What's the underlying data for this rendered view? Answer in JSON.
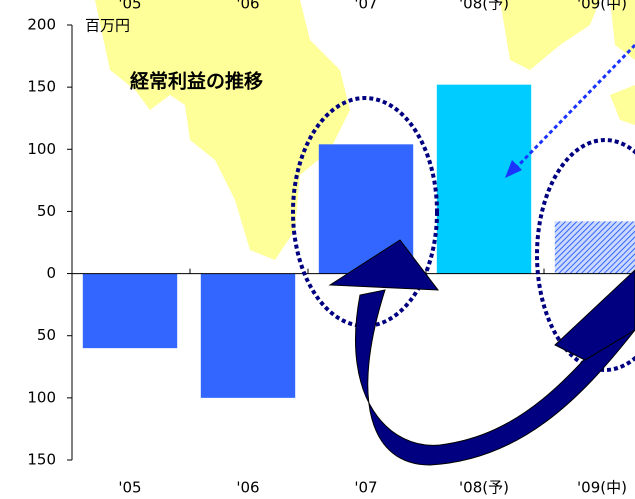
{
  "chart_data": {
    "type": "bar",
    "title": "経常利益の推移",
    "unit": "百万円",
    "categories": [
      "'05",
      "'06",
      "'07",
      "'08(予)",
      "'09(中)"
    ],
    "values": [
      -60,
      -100,
      104,
      152,
      42
    ],
    "colors": [
      "#3366ff",
      "#3366ff",
      "#3366ff",
      "#00ccff",
      "#3366ff"
    ],
    "hatched": [
      false,
      false,
      false,
      false,
      true
    ],
    "ylim": [
      -150,
      200
    ],
    "yticks": [
      {
        "value": -150,
        "label": "150"
      },
      {
        "value": -100,
        "label": "100"
      },
      {
        "value": -50,
        "label": "50"
      },
      0,
      50,
      100,
      150,
      200
    ]
  }
}
